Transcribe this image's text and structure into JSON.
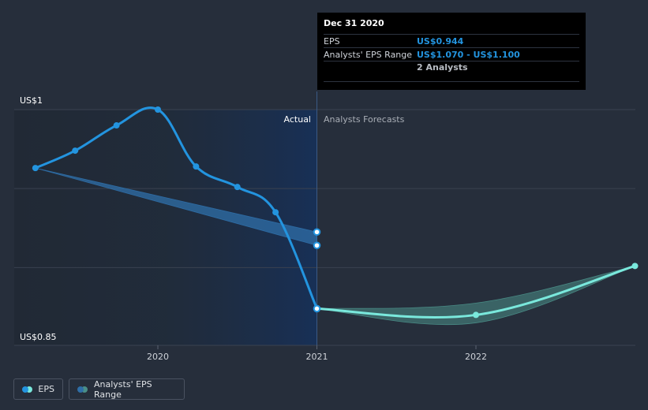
{
  "chart_data": {
    "type": "line",
    "y_axis": {
      "min_label": "US$0.85",
      "max_label": "US$1",
      "min": 0.85,
      "max": 1.0
    },
    "x_ticks": [
      {
        "label": "2020",
        "x": 2020.0
      },
      {
        "label": "2021",
        "x": 2021.0
      },
      {
        "label": "2022",
        "x": 2022.0
      }
    ],
    "x_range": [
      2019.08,
      2023.0
    ],
    "regions": {
      "actual_label": "Actual",
      "forecast_label": "Analysts Forecasts",
      "split_x": 2021.0
    },
    "series": [
      {
        "name": "EPS",
        "color": "#2394df",
        "points": [
          [
            2019.23,
            0.963
          ],
          [
            2019.48,
            0.974
          ],
          [
            2019.74,
            0.99
          ],
          [
            2020.0,
            1.0
          ],
          [
            2020.24,
            0.964
          ],
          [
            2020.5,
            0.951
          ],
          [
            2020.74,
            0.935
          ],
          [
            2021.0,
            0.874
          ]
        ]
      },
      {
        "name": "EPS forecast",
        "color": "#7ae8dc",
        "points": [
          [
            2021.0,
            0.874
          ],
          [
            2022.0,
            0.87
          ],
          [
            2023.0,
            0.901
          ]
        ]
      }
    ],
    "range_bands": [
      {
        "name": "Analysts' EPS Range",
        "color": "#2f6fa8",
        "upper": [
          [
            2019.23,
            0.963
          ],
          [
            2021.0,
            0.9225
          ]
        ],
        "lower": [
          [
            2019.23,
            0.963
          ],
          [
            2021.0,
            0.914
          ]
        ],
        "end_markers": [
          0.9225,
          0.914
        ]
      },
      {
        "name": "Analysts' EPS Range forecast",
        "color": "#4a8f88",
        "upper": [
          [
            2021.0,
            0.874
          ],
          [
            2022.0,
            0.8775
          ],
          [
            2023.0,
            0.901
          ]
        ],
        "lower": [
          [
            2021.0,
            0.874
          ],
          [
            2022.0,
            0.865
          ],
          [
            2023.0,
            0.901
          ]
        ]
      }
    ]
  },
  "tooltip": {
    "title": "Dec 31 2020",
    "rows": [
      {
        "key": "EPS",
        "value": "US$0.944"
      },
      {
        "key": "Analysts' EPS Range",
        "value": "US$1.070 - US$1.100",
        "sub": "2 Analysts"
      }
    ]
  },
  "legend": [
    {
      "label": "EPS",
      "colorA": "#2394df",
      "colorB": "#7ae8dc"
    },
    {
      "label": "Analysts' EPS Range",
      "colorA": "#2f6fa8",
      "colorB": "#4a8f88"
    }
  ]
}
